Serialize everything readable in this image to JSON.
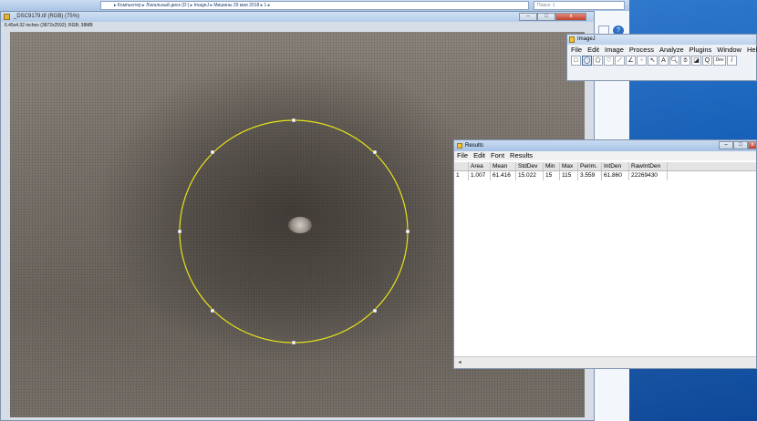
{
  "explorer": {
    "address": "▸ Компьютер ▸ Локальный диск (D:) ▸ ImageJ ▸ Мишины 29 мая 2018 ▸ 1 ▸",
    "search_placeholder": "Поиск: 1"
  },
  "image_window": {
    "title": "_DSC9179.tif (RGB) (75%)",
    "info": "6.45x4.32 inches (3872x2592); RGB; 38MB",
    "roi_shape": "oval-selection"
  },
  "imagej": {
    "title": "ImageJ",
    "menu": [
      "File",
      "Edit",
      "Image",
      "Process",
      "Analyze",
      "Plugins",
      "Window",
      "Help"
    ],
    "tools": [
      {
        "icon": "rectangle-tool-icon",
        "glyph": "□"
      },
      {
        "icon": "oval-tool-icon",
        "glyph": "◯",
        "selected": true
      },
      {
        "icon": "polygon-tool-icon",
        "glyph": "⬠"
      },
      {
        "icon": "freehand-tool-icon",
        "glyph": "♡"
      },
      {
        "icon": "line-tool-icon",
        "glyph": "⟋"
      },
      {
        "icon": "angle-tool-icon",
        "glyph": "∠"
      },
      {
        "icon": "point-tool-icon",
        "glyph": "⁘"
      },
      {
        "icon": "wand-tool-icon",
        "glyph": "↖"
      },
      {
        "icon": "text-tool-icon",
        "glyph": "A"
      },
      {
        "icon": "magnifier-tool-icon",
        "glyph": "🔍︎"
      },
      {
        "icon": "hand-tool-icon",
        "glyph": "✋︎"
      },
      {
        "icon": "color-picker-icon",
        "glyph": "◪"
      },
      {
        "icon": "zoom-tool-icon",
        "glyph": "Q"
      },
      {
        "icon": "dev-tool-icon",
        "glyph": "Dev"
      },
      {
        "icon": "pencil-tool-icon",
        "glyph": "/"
      }
    ]
  },
  "results": {
    "title": "Results",
    "menu": [
      "File",
      "Edit",
      "Font",
      "Results"
    ],
    "columns": [
      "",
      "Area",
      "Mean",
      "StdDev",
      "Min",
      "Max",
      "Perim.",
      "IntDen",
      "RawIntDen"
    ],
    "rows": [
      [
        "1",
        "1.007",
        "61.416",
        "15.022",
        "15",
        "115",
        "3.559",
        "61.860",
        "22269430"
      ]
    ]
  }
}
